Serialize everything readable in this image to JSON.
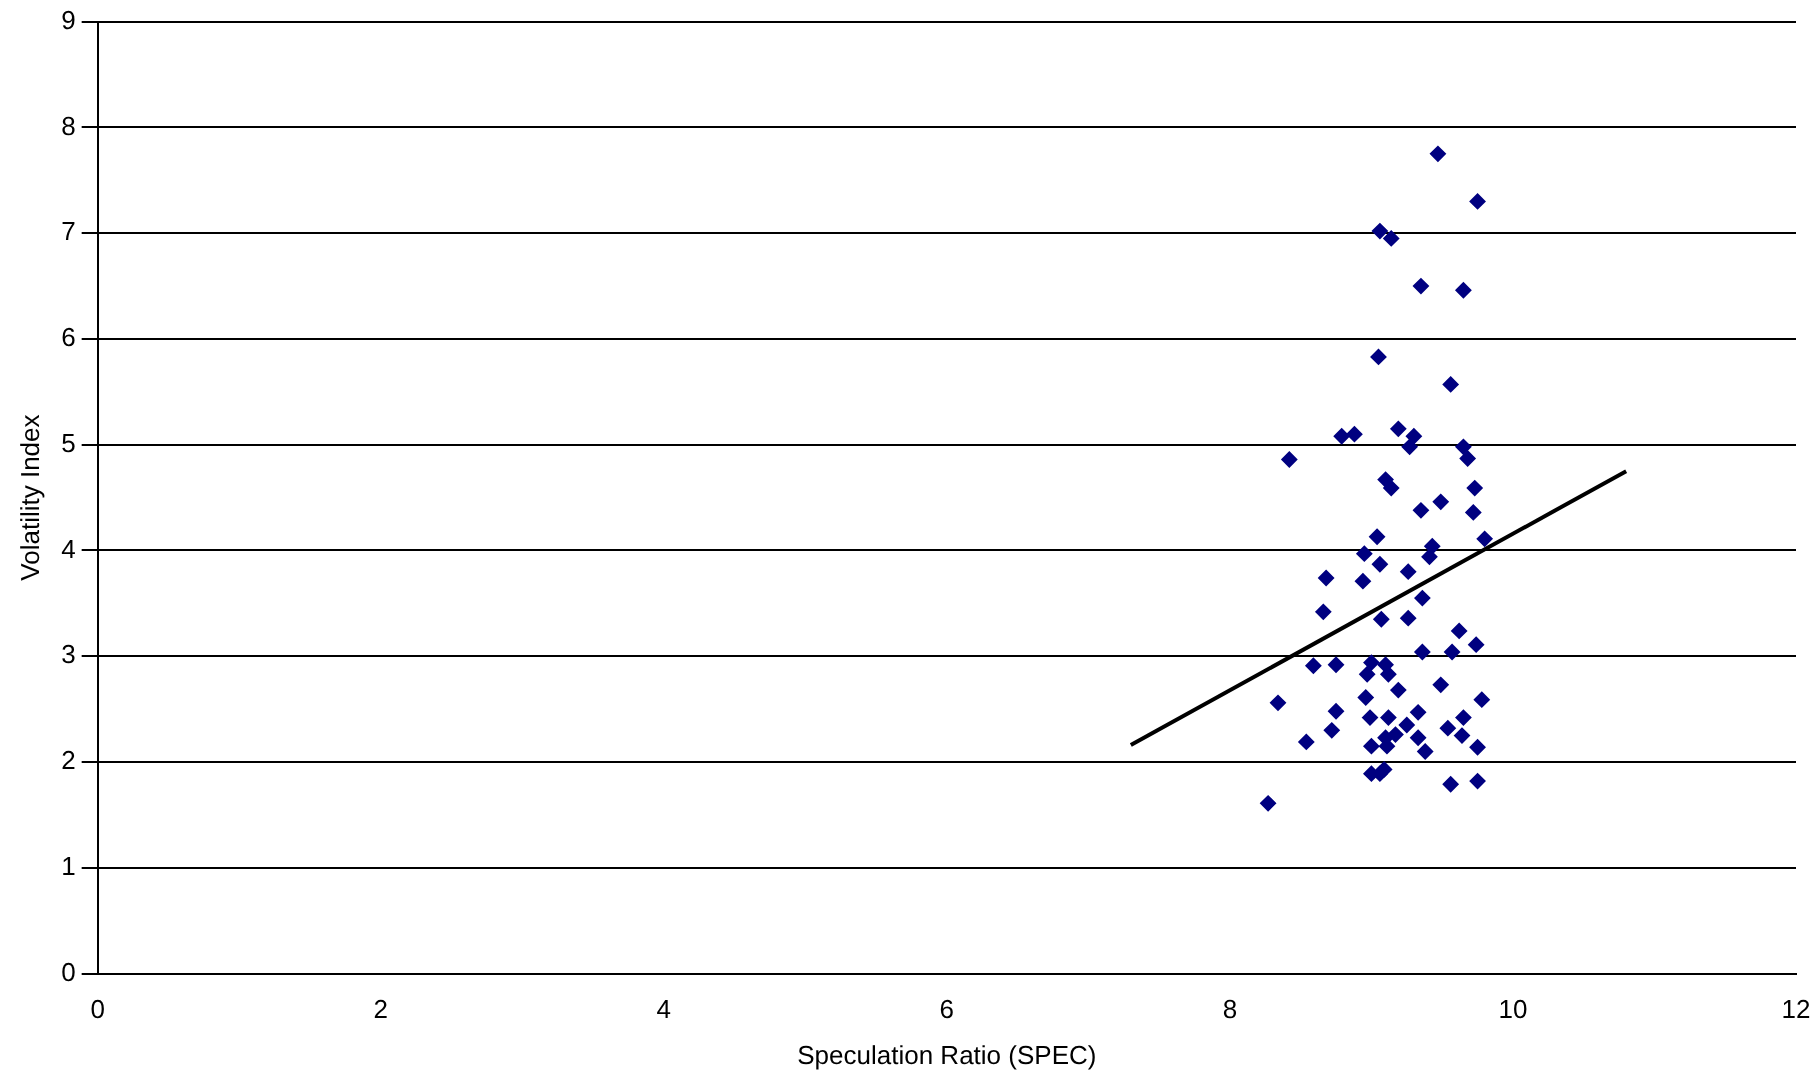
{
  "chart_data": {
    "type": "scatter",
    "xlabel": "Speculation Ratio (SPEC)",
    "ylabel": "Volatility Index",
    "xlim": [
      0,
      12
    ],
    "xticks": [
      0,
      2,
      4,
      6,
      8,
      10,
      12
    ],
    "ylim": [
      0,
      9
    ],
    "yticks": [
      0,
      1,
      2,
      3,
      4,
      5,
      6,
      7,
      8,
      9
    ],
    "grid": "y",
    "legend": false,
    "marker": "diamond",
    "series": [
      {
        "color": "#000080",
        "x": [
          9.47,
          9.06,
          9.14,
          9.75,
          9.35,
          9.65,
          9.05,
          9.56,
          8.79,
          8.88,
          9.19,
          9.3,
          9.27,
          9.65,
          9.68,
          8.42,
          9.1,
          9.14,
          9.73,
          9.35,
          9.49,
          9.72,
          9.04,
          9.8,
          9.43,
          9.41,
          8.95,
          9.06,
          8.68,
          8.94,
          9.26,
          9.36,
          8.66,
          9.07,
          9.26,
          9.62,
          9.74,
          9.36,
          9.57,
          8.59,
          8.75,
          9.0,
          9.1,
          8.97,
          9.12,
          9.19,
          9.49,
          8.34,
          8.96,
          9.78,
          8.75,
          8.99,
          9.12,
          9.33,
          9.65,
          8.72,
          9.25,
          9.54,
          8.54,
          9.1,
          9.17,
          9.33,
          9.64,
          9.0,
          9.11,
          9.38,
          9.75,
          9.0,
          9.06,
          9.09,
          9.56,
          9.75,
          8.27
        ],
        "values": [
          7.75,
          7.02,
          6.95,
          7.3,
          6.5,
          6.46,
          5.83,
          5.57,
          5.08,
          5.1,
          5.15,
          5.08,
          4.98,
          4.98,
          4.87,
          4.86,
          4.67,
          4.59,
          4.59,
          4.38,
          4.46,
          4.36,
          4.13,
          4.11,
          4.04,
          3.94,
          3.97,
          3.87,
          3.74,
          3.71,
          3.8,
          3.55,
          3.42,
          3.35,
          3.36,
          3.24,
          3.11,
          3.04,
          3.04,
          2.91,
          2.92,
          2.94,
          2.92,
          2.83,
          2.83,
          2.68,
          2.73,
          2.56,
          2.61,
          2.59,
          2.48,
          2.42,
          2.42,
          2.47,
          2.42,
          2.3,
          2.35,
          2.32,
          2.19,
          2.23,
          2.26,
          2.23,
          2.25,
          2.15,
          2.15,
          2.1,
          2.14,
          1.89,
          1.89,
          1.93,
          1.79,
          1.82,
          1.61
        ]
      },
      {
        "type": "line",
        "color": "#000000",
        "marker": "none",
        "x": [
          7.3,
          10.8
        ],
        "values": [
          2.16,
          4.75
        ]
      }
    ]
  }
}
